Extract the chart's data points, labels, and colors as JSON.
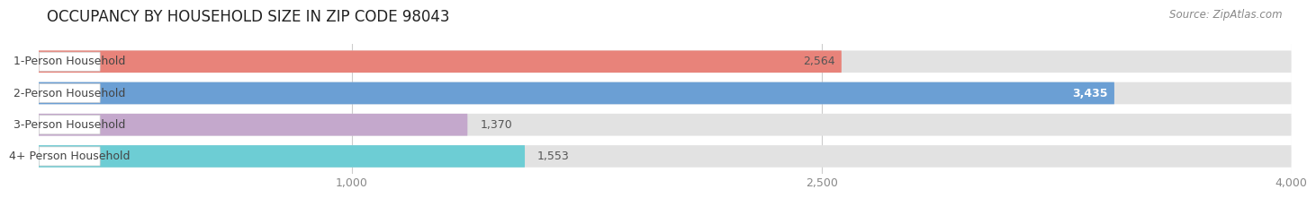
{
  "title": "OCCUPANCY BY HOUSEHOLD SIZE IN ZIP CODE 98043",
  "source": "Source: ZipAtlas.com",
  "categories": [
    "1-Person Household",
    "2-Person Household",
    "3-Person Household",
    "4+ Person Household"
  ],
  "values": [
    2564,
    3435,
    1370,
    1553
  ],
  "bar_colors": [
    "#e8837a",
    "#6b9fd4",
    "#c4a8cc",
    "#6dcdd4"
  ],
  "value_label_colors": [
    "#555555",
    "#ffffff",
    "#555555",
    "#555555"
  ],
  "xlim": [
    0,
    4000
  ],
  "xticks": [
    1000,
    2500,
    4000
  ],
  "xtick_labels": [
    "1,000",
    "2,500",
    "4,000"
  ],
  "background_color": "#f5f5f5",
  "bar_bg_color": "#e2e2e2",
  "title_fontsize": 12,
  "source_fontsize": 8.5,
  "bar_height": 0.7,
  "label_fontsize": 9,
  "cat_fontsize": 9,
  "value_threshold": 2000
}
